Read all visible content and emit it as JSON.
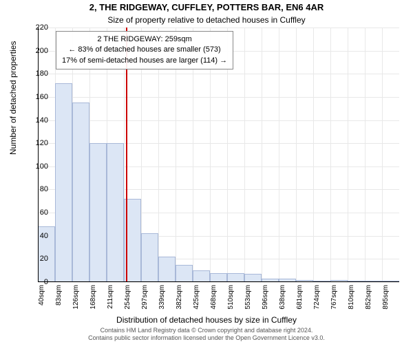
{
  "title_main": "2, THE RIDGEWAY, CUFFLEY, POTTERS BAR, EN6 4AR",
  "title_sub": "Size of property relative to detached houses in Cuffley",
  "y_label": "Number of detached properties",
  "x_label": "Distribution of detached houses by size in Cuffley",
  "footer_line1": "Contains HM Land Registry data © Crown copyright and database right 2024.",
  "footer_line2": "Contains public sector information licensed under the Open Government Licence v3.0.",
  "annotation": {
    "line1": "2 THE RIDGEWAY: 259sqm",
    "line2": "← 83% of detached houses are smaller (573)",
    "line3": "17% of semi-detached houses are larger (114) →"
  },
  "chart": {
    "type": "histogram",
    "y_min": 0,
    "y_max": 220,
    "y_tick_step": 20,
    "x_ticks": [
      "40sqm",
      "83sqm",
      "126sqm",
      "168sqm",
      "211sqm",
      "254sqm",
      "297sqm",
      "339sqm",
      "382sqm",
      "425sqm",
      "468sqm",
      "510sqm",
      "553sqm",
      "596sqm",
      "638sqm",
      "681sqm",
      "724sqm",
      "767sqm",
      "810sqm",
      "852sqm",
      "895sqm"
    ],
    "bars": [
      48,
      172,
      155,
      120,
      120,
      72,
      42,
      22,
      15,
      10,
      8,
      8,
      7,
      3,
      3,
      2,
      1,
      2,
      1,
      1,
      1
    ],
    "bar_fill": "#dce6f5",
    "bar_stroke": "#a8b8d8",
    "grid_color": "#e8e8e8",
    "ref_line_x_value": 259,
    "ref_line_color": "#cc0000",
    "background": "#ffffff"
  }
}
